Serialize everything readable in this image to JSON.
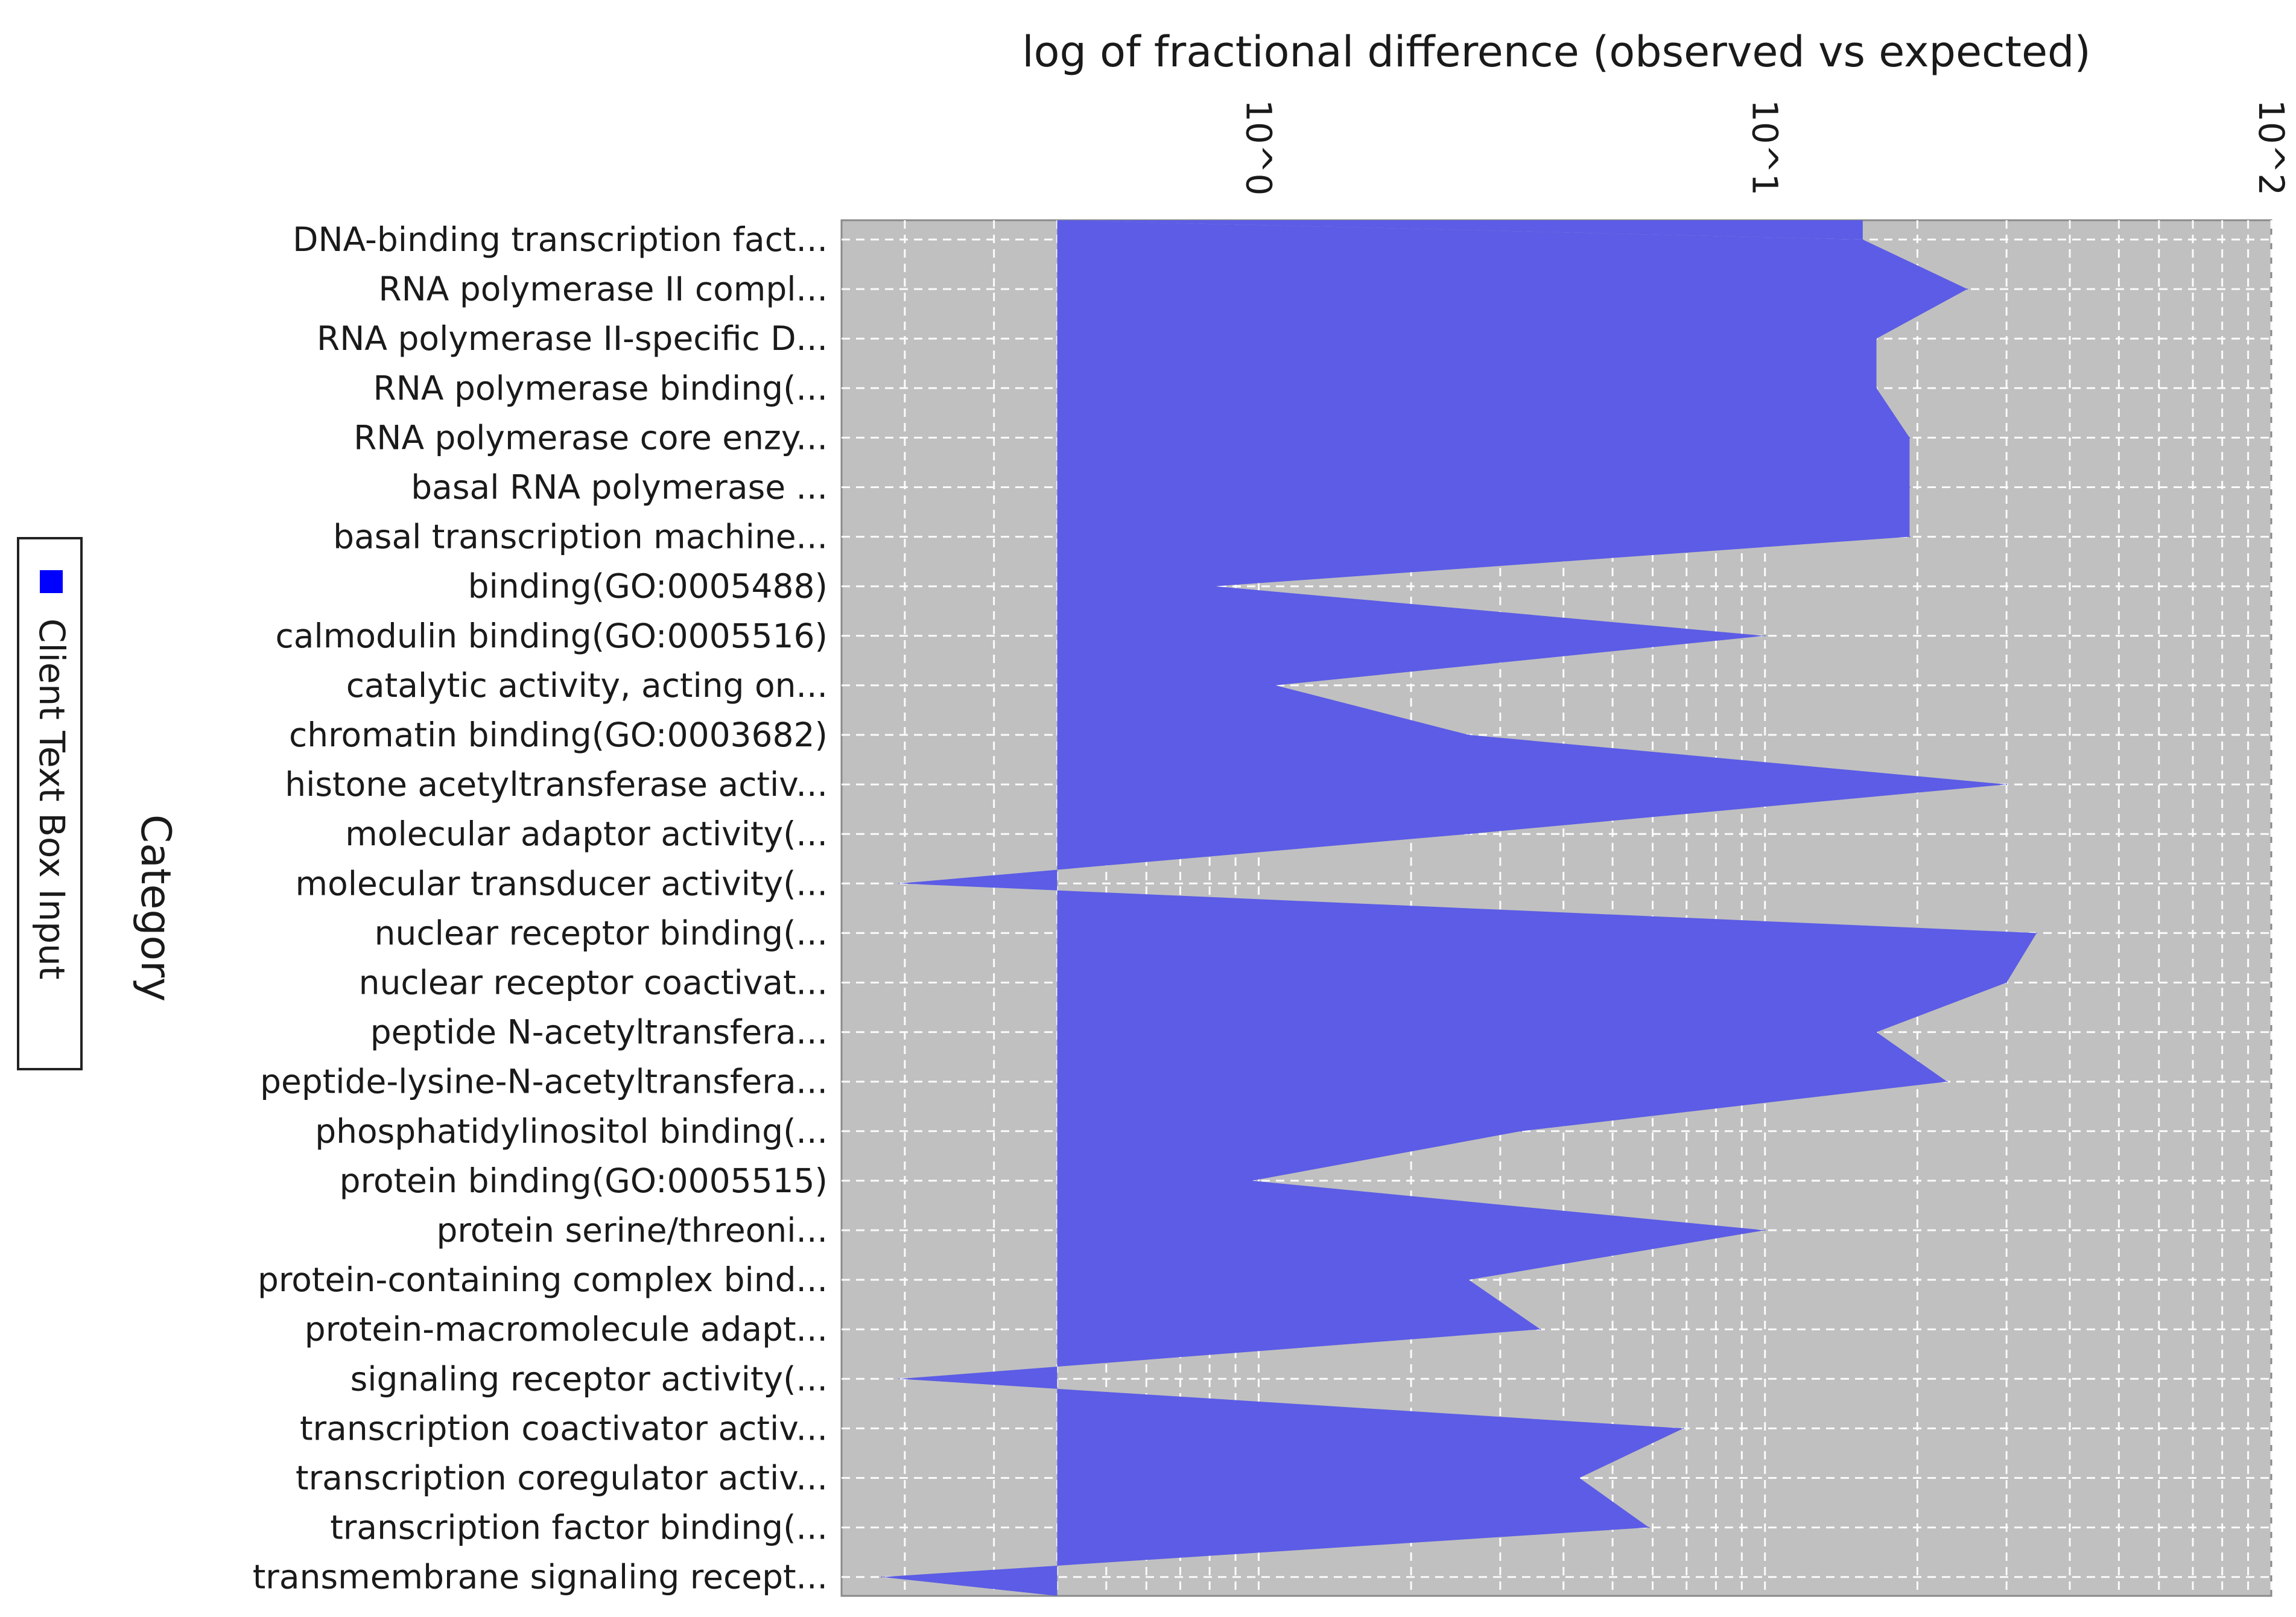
{
  "chart_data": {
    "type": "area",
    "orientation": "horizontal",
    "x_scale": "log10",
    "title": "log of fractional difference (observed vs expected)",
    "xlabel": "log of fractional difference (observed vs expected)",
    "ylabel": "Category",
    "xlim": [
      0.15,
      100
    ],
    "baseline": 0.4,
    "x_ticks": [
      {
        "value": 1,
        "label": "10^0"
      },
      {
        "value": 10,
        "label": "10^1"
      },
      {
        "value": 100,
        "label": "10^2"
      }
    ],
    "legend": {
      "position": "left",
      "entries": [
        "Client Text Box Input"
      ]
    },
    "series": [
      {
        "name": "Client Text Box Input",
        "color": "#5c5ce6",
        "categories": [
          "DNA-binding transcription fact...",
          "RNA polymerase II compl...",
          "RNA polymerase II-specific D...",
          "RNA polymerase binding(...",
          "RNA polymerase core enzy...",
          "basal RNA polymerase ...",
          "basal transcription machine...",
          "binding(GO:0005488)",
          "calmodulin binding(GO:0005516)",
          "catalytic activity, acting on...",
          "chromatin binding(GO:0003682)",
          "histone acetyltransferase activ...",
          "molecular adaptor activity(...",
          "molecular transducer activity(...",
          "nuclear receptor binding(...",
          "nuclear receptor coactivat...",
          "peptide N-acetyltransfera...",
          "peptide-lysine-N-acetyltransfera...",
          "phosphatidylinositol binding(...",
          "protein binding(GO:0005515)",
          "protein serine/threoni...",
          "protein-containing complex bind...",
          "protein-macromolecule adapt...",
          "signaling receptor activity(...",
          "transcription coactivator activ...",
          "transcription coregulator activ...",
          "transcription factor binding(...",
          "transmembrane signaling recept..."
        ],
        "values": [
          15.6,
          25.1,
          16.6,
          16.6,
          19.3,
          19.3,
          19.3,
          0.82,
          10.0,
          1.08,
          2.6,
          30.0,
          2.6,
          0.195,
          34.4,
          30.0,
          16.6,
          22.9,
          3.3,
          0.97,
          10.0,
          2.6,
          3.6,
          0.195,
          6.9,
          4.3,
          5.9,
          0.18
        ]
      }
    ]
  }
}
